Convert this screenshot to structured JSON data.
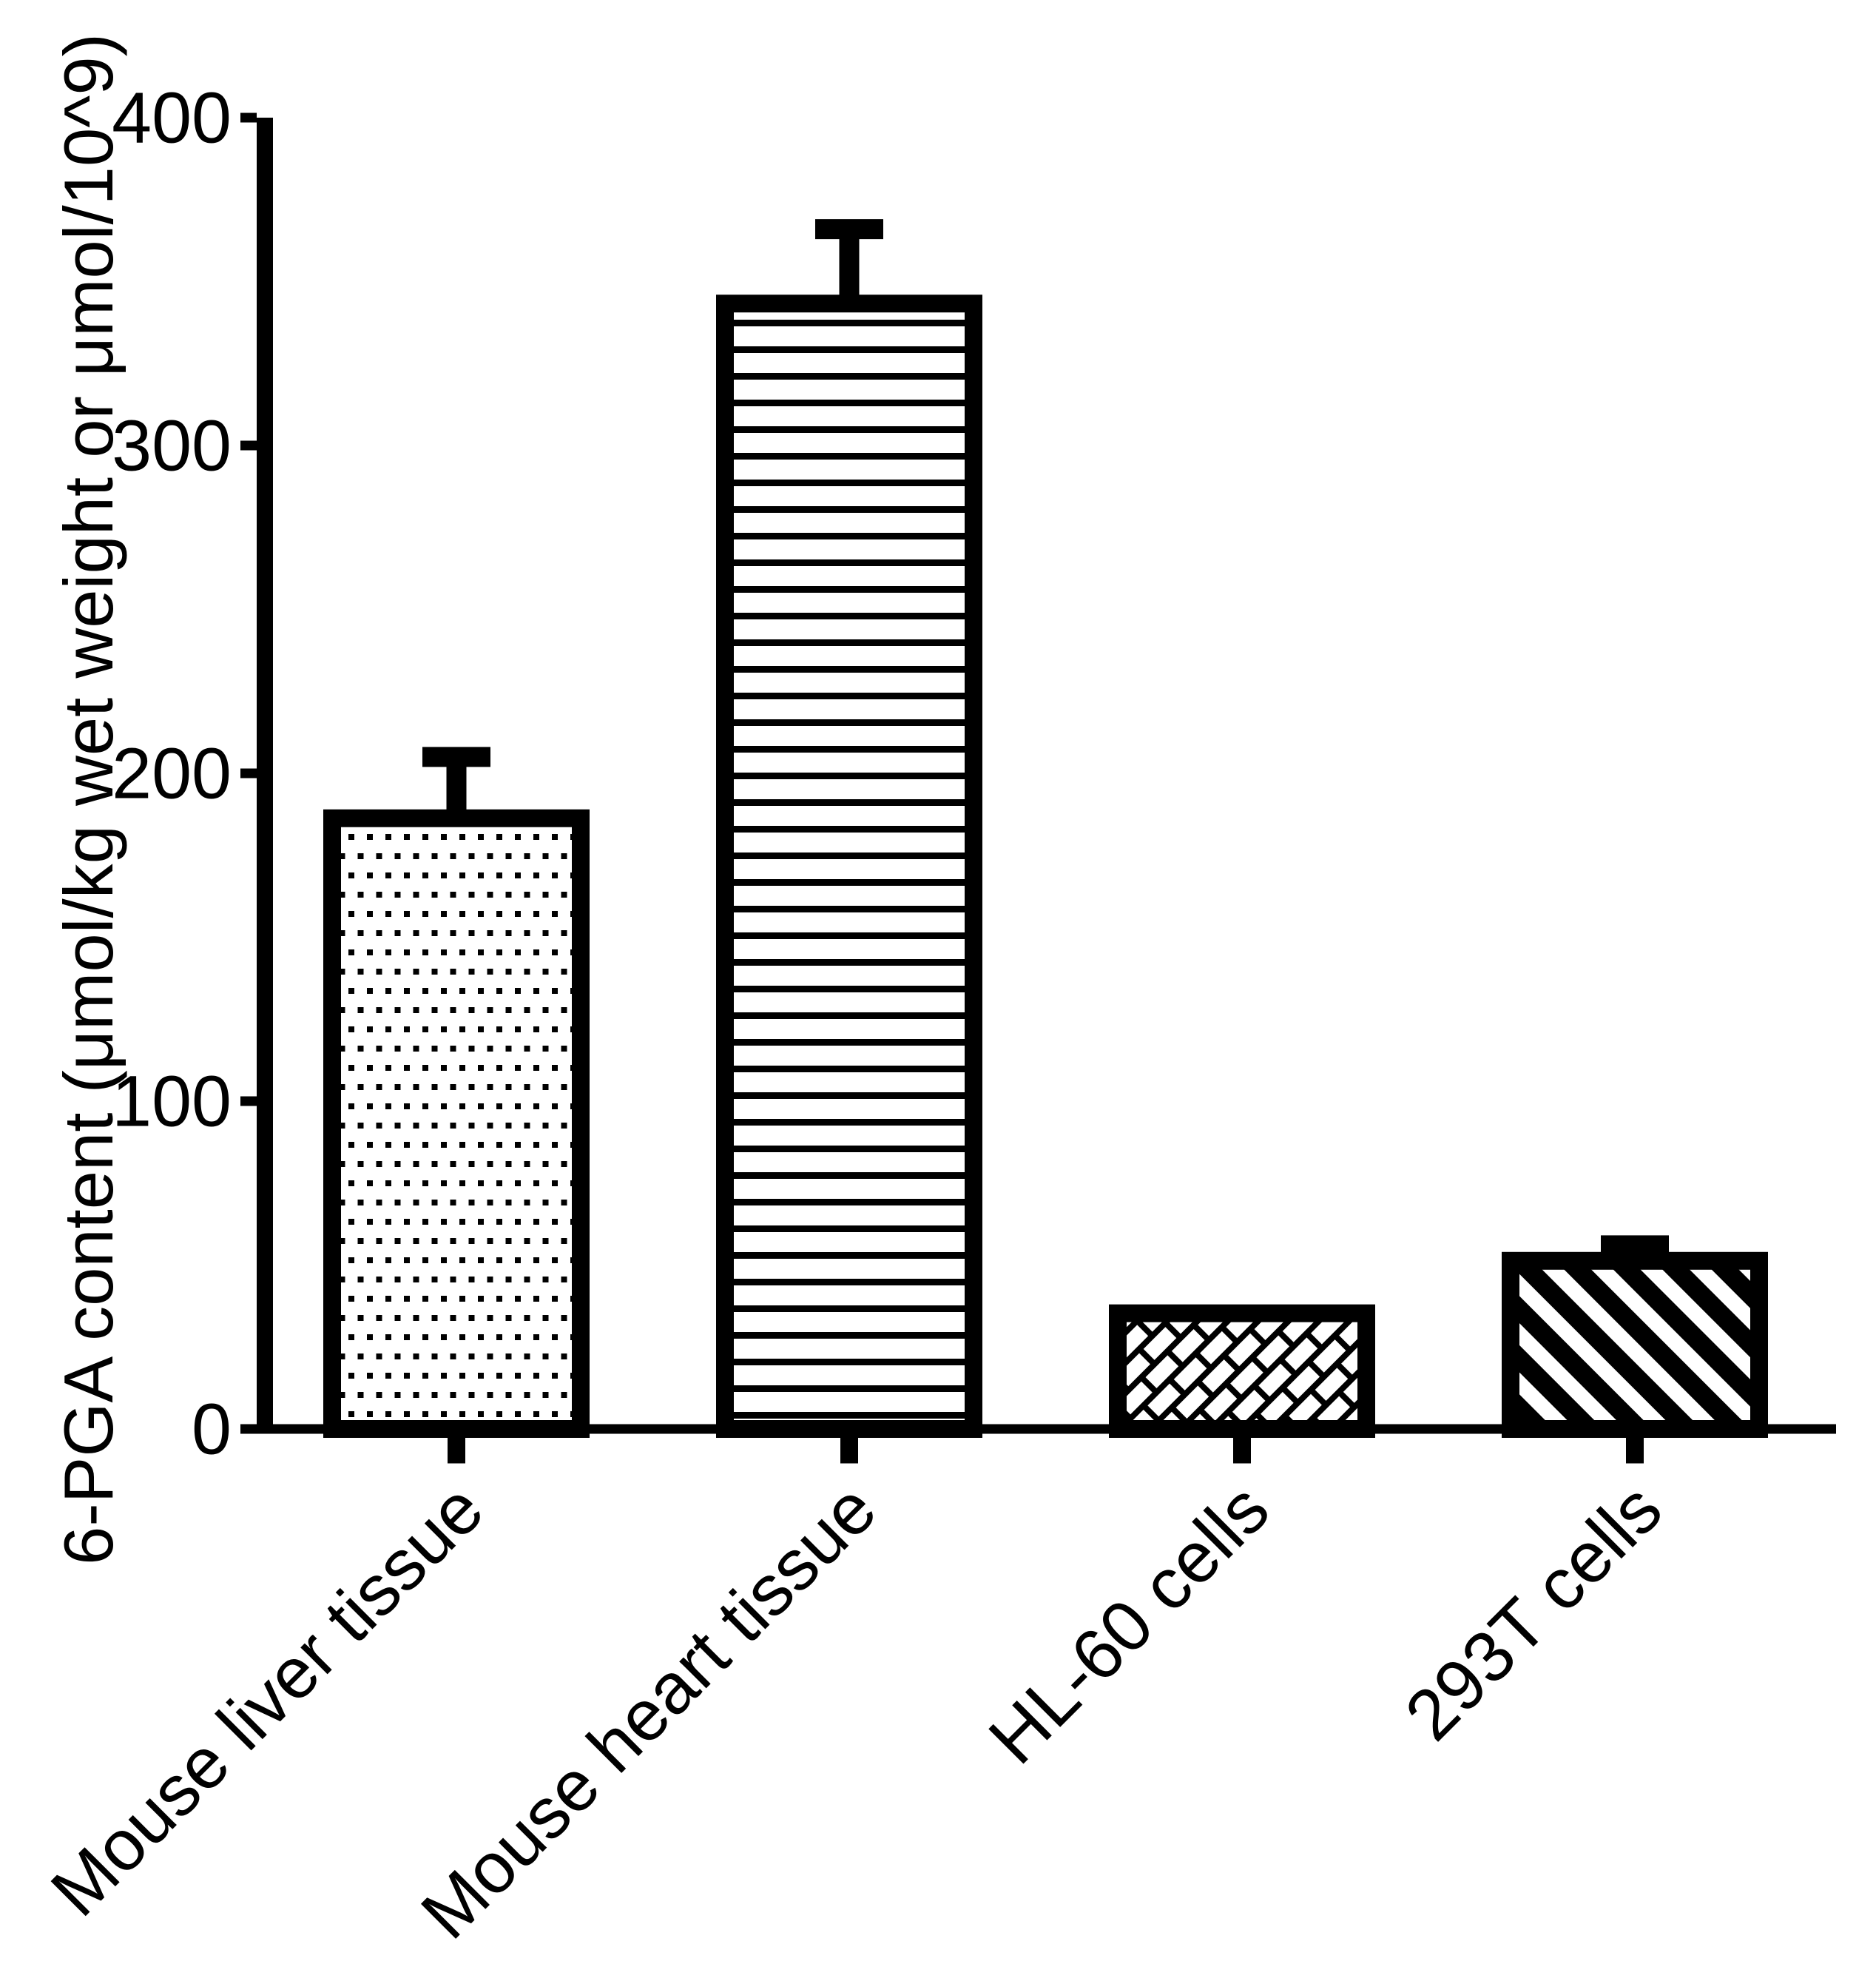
{
  "chart_data": {
    "type": "bar",
    "title": "",
    "categories": [
      "Mouse liver tissue",
      "Mouse heart tissue",
      "HL-60 cells",
      "293T cells"
    ],
    "values": [
      189,
      346,
      38,
      54
    ],
    "errors": [
      16,
      20,
      0,
      2
    ],
    "error_style": "upper error bar with cap",
    "ylabel": "6-PGA content (μmol/kg wet weight or μmol/10^9)",
    "xlabel": "",
    "yticks": [
      0,
      100,
      200,
      300,
      400
    ],
    "ylim": [
      0,
      400
    ],
    "grid": false,
    "legend": false,
    "bar_patterns": [
      "dots",
      "horizontal-lines",
      "diagonal-basket-weave",
      "diagonal-stripes"
    ],
    "bar_fill_color": "#ffffff",
    "pattern_color": "#000000",
    "axis_color": "#000000",
    "background_color": "#ffffff"
  }
}
